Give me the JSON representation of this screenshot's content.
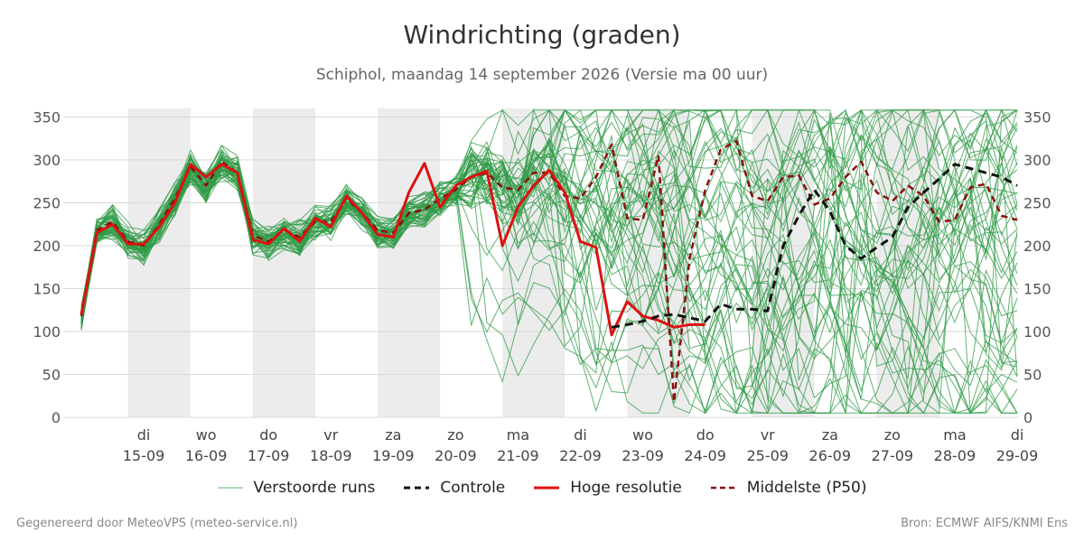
{
  "title": "Windrichting (graden)",
  "subtitle": "Schiphol, maandag 14 september 2026 (Versie ma 00 uur)",
  "footer": {
    "left": "Gegenereerd door MeteoVPS (meteo-service.nl)",
    "right": "Bron: ECMWF AIFS/KNMI Ens"
  },
  "colors": {
    "ensemble": "#2e9a44",
    "control": "#111111",
    "hires": "#dd1111",
    "median": "#8b1010",
    "weekend_band": "#ececec",
    "grid": "#d9d9d9"
  },
  "legend": [
    {
      "label": "Verstoorde runs",
      "style": "thin-green"
    },
    {
      "label": "Controle",
      "style": "dashed-black"
    },
    {
      "label": "Hoge resolutie",
      "style": "solid-red"
    },
    {
      "label": "Middelste (P50)",
      "style": "dashed-darkred"
    }
  ],
  "chart_data": {
    "type": "line",
    "title": "Windrichting (graden)",
    "subtitle": "Schiphol, maandag 14 september 2026 (Versie ma 00 uur)",
    "x_unit": "days since 14-09 00:00",
    "xlim": [
      0,
      15
    ],
    "ylim": [
      0,
      360
    ],
    "yticks": [
      0,
      50,
      100,
      150,
      200,
      250,
      300,
      350
    ],
    "xticks": [
      {
        "x": 1,
        "day": "di",
        "date": "15-09"
      },
      {
        "x": 2,
        "day": "wo",
        "date": "16-09"
      },
      {
        "x": 3,
        "day": "do",
        "date": "17-09"
      },
      {
        "x": 4,
        "day": "vr",
        "date": "18-09"
      },
      {
        "x": 5,
        "day": "za",
        "date": "19-09"
      },
      {
        "x": 6,
        "day": "zo",
        "date": "20-09"
      },
      {
        "x": 7,
        "day": "ma",
        "date": "21-09"
      },
      {
        "x": 8,
        "day": "di",
        "date": "22-09"
      },
      {
        "x": 9,
        "day": "wo",
        "date": "23-09"
      },
      {
        "x": 10,
        "day": "do",
        "date": "24-09"
      },
      {
        "x": 11,
        "day": "vr",
        "date": "25-09"
      },
      {
        "x": 12,
        "day": "za",
        "date": "26-09"
      },
      {
        "x": 13,
        "day": "zo",
        "date": "27-09"
      },
      {
        "x": 14,
        "day": "ma",
        "date": "28-09"
      },
      {
        "x": 15,
        "day": "di",
        "date": "29-09"
      }
    ],
    "shaded_days": [
      [
        0.75,
        1.75
      ],
      [
        2.75,
        3.75
      ],
      [
        4.75,
        5.75
      ],
      [
        6.75,
        7.75
      ],
      [
        8.75,
        9.75
      ],
      [
        10.75,
        11.75
      ],
      [
        12.75,
        13.75
      ]
    ],
    "grid": true,
    "series": [
      {
        "name": "Hoge resolutie",
        "x": [
          0,
          0.25,
          0.5,
          0.75,
          1,
          1.25,
          1.5,
          1.75,
          2,
          2.25,
          2.5,
          2.75,
          3,
          3.25,
          3.5,
          3.75,
          4,
          4.25,
          4.5,
          4.75,
          5,
          5.25,
          5.5,
          5.75,
          6,
          6.25,
          6.5,
          6.75,
          7,
          7.25,
          7.5,
          7.75,
          8,
          8.25,
          8.5,
          8.75,
          9,
          9.25,
          9.5,
          9.75,
          10
        ],
        "values": [
          120,
          215,
          225,
          202,
          202,
          222,
          250,
          295,
          280,
          295,
          285,
          207,
          202,
          220,
          205,
          232,
          222,
          258,
          238,
          213,
          210,
          262,
          296,
          245,
          270,
          280,
          287,
          200,
          245,
          270,
          288,
          262,
          205,
          198,
          96,
          135,
          118,
          113,
          105,
          108,
          108
        ]
      },
      {
        "name": "Controle",
        "x": [
          8.5,
          8.75,
          9,
          9.25,
          9.5,
          9.75,
          10,
          10.25,
          10.5,
          10.75,
          11,
          11.25,
          11.5,
          11.75,
          12,
          12.25,
          12.5,
          12.75,
          13,
          13.25,
          13.5,
          13.75,
          14,
          14.25,
          14.5,
          14.75,
          15
        ],
        "values": [
          105,
          108,
          112,
          118,
          120,
          116,
          112,
          132,
          126,
          126,
          124,
          200,
          235,
          265,
          240,
          200,
          185,
          198,
          210,
          245,
          262,
          278,
          295,
          290,
          285,
          280,
          270
        ]
      },
      {
        "name": "Middelste (P50)",
        "x": [
          0,
          0.25,
          0.5,
          0.75,
          1,
          1.25,
          1.5,
          1.75,
          2,
          2.25,
          2.5,
          2.75,
          3,
          3.25,
          3.5,
          3.75,
          4,
          4.25,
          4.5,
          4.75,
          5,
          5.25,
          5.5,
          5.75,
          6,
          6.25,
          6.5,
          6.75,
          7,
          7.25,
          7.5,
          7.75,
          8,
          8.25,
          8.5,
          8.75,
          9,
          9.25,
          9.5,
          9.75,
          10,
          10.25,
          10.5,
          10.75,
          11,
          11.25,
          11.5,
          11.75,
          12,
          12.25,
          12.5,
          12.75,
          13,
          13.25,
          13.5,
          13.75,
          14,
          14.25,
          14.5,
          14.75,
          15
        ],
        "values": [
          118,
          218,
          228,
          205,
          200,
          225,
          255,
          292,
          270,
          298,
          285,
          212,
          205,
          218,
          210,
          228,
          228,
          255,
          238,
          218,
          215,
          238,
          242,
          255,
          265,
          280,
          285,
          268,
          265,
          285,
          285,
          258,
          255,
          280,
          318,
          232,
          230,
          305,
          18,
          185,
          265,
          312,
          322,
          258,
          252,
          280,
          282,
          248,
          255,
          280,
          298,
          262,
          252,
          270,
          258,
          228,
          230,
          268,
          272,
          235,
          230
        ]
      }
    ],
    "ensemble": {
      "name": "Verstoorde runs",
      "members": 50,
      "step": 0.25,
      "note": "50 perturbed members; tight spread (~190-320) through day 7, scattering across 0-360 after day 7"
    }
  }
}
